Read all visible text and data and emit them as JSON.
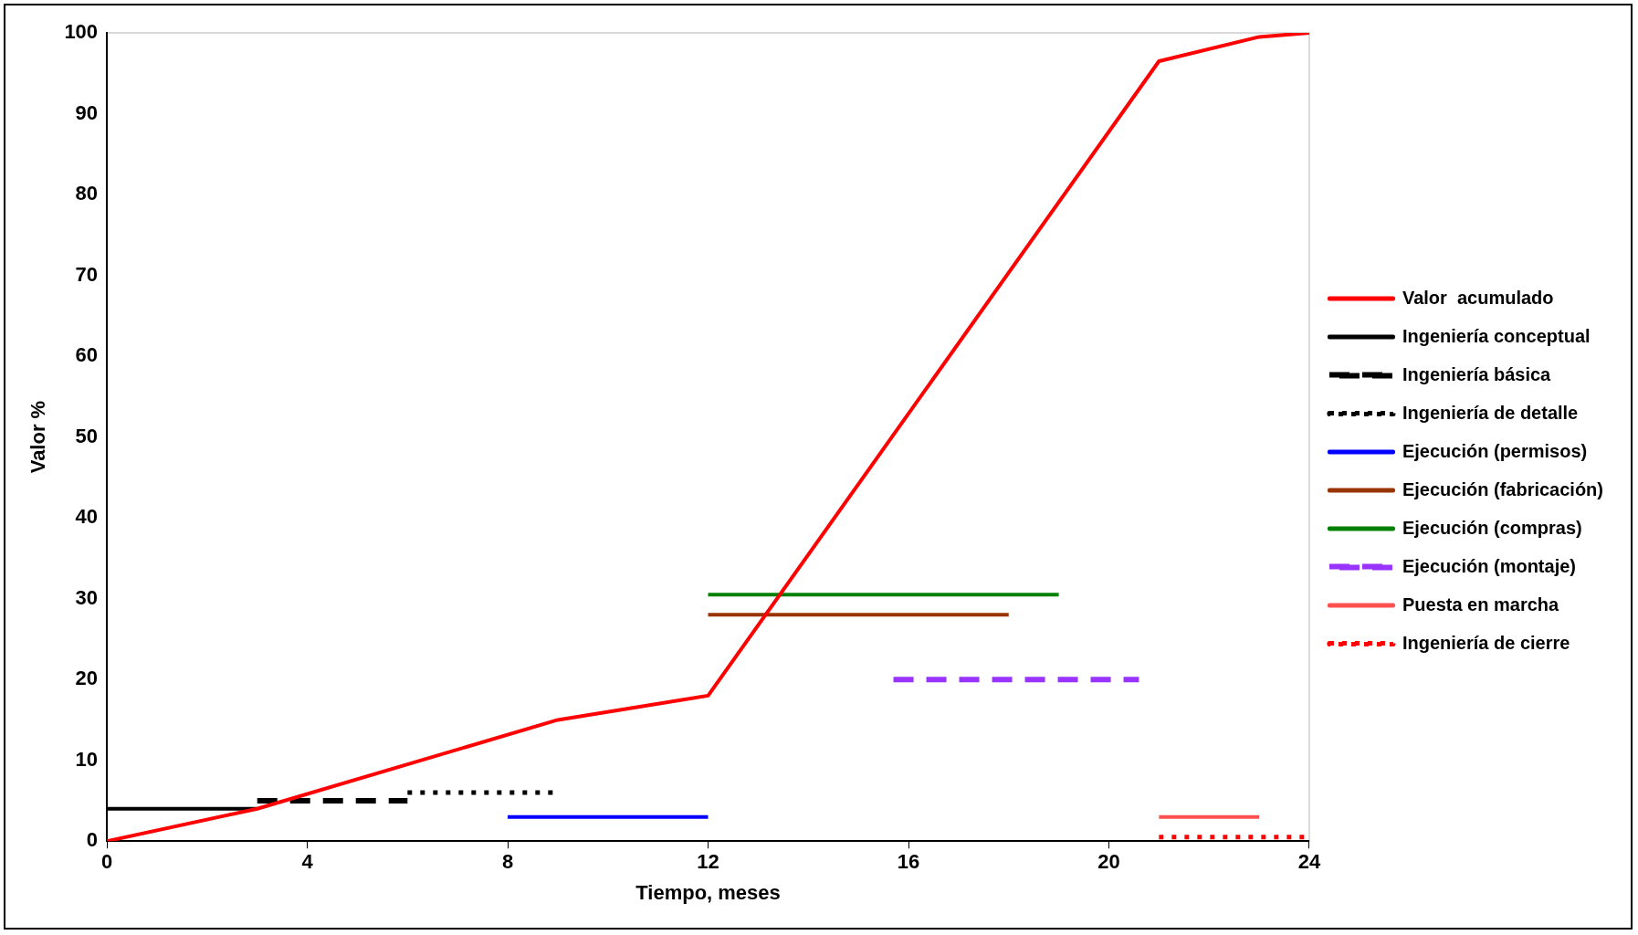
{
  "chart_data": {
    "type": "line",
    "xlabel": "Tiempo, meses",
    "ylabel": "Valor %",
    "xlim": [
      0,
      24
    ],
    "xticks": [
      0,
      4,
      8,
      12,
      16,
      20,
      24
    ],
    "ylim": [
      0,
      100
    ],
    "yticks": [
      0,
      10,
      20,
      30,
      40,
      50,
      60,
      70,
      80,
      90,
      100
    ],
    "grid": false,
    "legend": "right",
    "marker": "none",
    "series": [
      {
        "name": "Valor  acumulado",
        "color": "#ff0000",
        "line_style": "solid",
        "x": [
          0,
          3,
          9,
          12,
          21,
          23,
          24
        ],
        "values": [
          0,
          4,
          15,
          18,
          96.5,
          99.5,
          100
        ]
      },
      {
        "name": "Ingeniería conceptual",
        "color": "#000000",
        "line_style": "solid",
        "x": [
          0,
          3
        ],
        "values": [
          4,
          4
        ]
      },
      {
        "name": "Ingeniería básica",
        "color": "#000000",
        "line_style": "dashed",
        "x": [
          3,
          6
        ],
        "values": [
          5,
          5
        ]
      },
      {
        "name": "Ingeniería de detalle",
        "color": "#000000",
        "line_style": "dotted",
        "x": [
          6,
          9
        ],
        "values": [
          6,
          6
        ]
      },
      {
        "name": "Ejecución (permisos)",
        "color": "#0000ff",
        "line_style": "solid",
        "x": [
          8,
          12
        ],
        "values": [
          3,
          3
        ]
      },
      {
        "name": "Ejecución (fabricación)",
        "color": "#993300",
        "line_style": "solid",
        "x": [
          12,
          18
        ],
        "values": [
          28,
          28
        ]
      },
      {
        "name": "Ejecución (compras)",
        "color": "#008000",
        "line_style": "solid",
        "x": [
          12,
          19
        ],
        "values": [
          30.5,
          30.5
        ]
      },
      {
        "name": "Ejecución (montaje)",
        "color": "#9933ff",
        "line_style": "dashed",
        "x": [
          15.7,
          20.6
        ],
        "values": [
          20,
          20
        ]
      },
      {
        "name": "Puesta en marcha",
        "color": "#ff5050",
        "line_style": "solid",
        "x": [
          21,
          23
        ],
        "values": [
          3,
          3
        ]
      },
      {
        "name": "Ingeniería de cierre",
        "color": "#ff0000",
        "line_style": "dotted",
        "x": [
          21,
          24
        ],
        "values": [
          0.5,
          0.5
        ]
      }
    ]
  }
}
